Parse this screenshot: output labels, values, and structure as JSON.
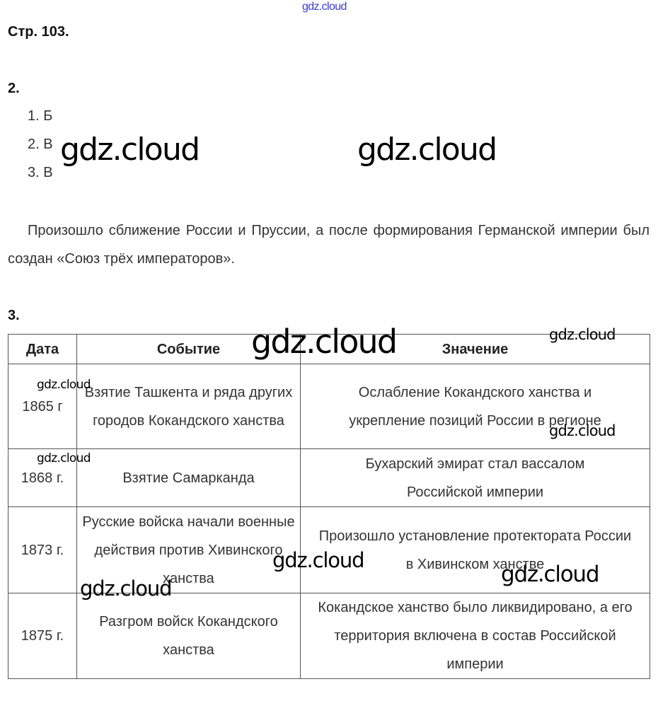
{
  "watermark": "gdz.cloud",
  "page_heading": "Стр. 103.",
  "task2": {
    "number": "2.",
    "answers": [
      "1. Б",
      "2. В",
      "3. В"
    ],
    "paragraph": "Произошло сближение России и Пруссии, а после формирования Германской империи был создан «Союз трёх императоров»."
  },
  "task3": {
    "number": "3.",
    "headers": [
      "Дата",
      "Событие",
      "Значение"
    ],
    "rows": [
      {
        "date": "1865 г",
        "event": "Взятие Ташкента и ряда других городов Кокандского ханства",
        "meaning": "Ослабление Кокандского ханства и укрепление позиций России в регионе"
      },
      {
        "date": "1868 г.",
        "event": "Взятие Самарканда",
        "meaning": "Бухарский эмират стал вассалом Российской империи"
      },
      {
        "date": "1873 г.",
        "event": "Русские войска начали военные действия против Хивинского ханства",
        "meaning": "Произошло установление протектората России в Хивинском ханстве"
      },
      {
        "date": "1875 г.",
        "event": "Разгром войск Кокандского ханства",
        "meaning": "Кокандское ханство было ликвидировано, а его территория включена в состав Российской империи"
      }
    ]
  }
}
